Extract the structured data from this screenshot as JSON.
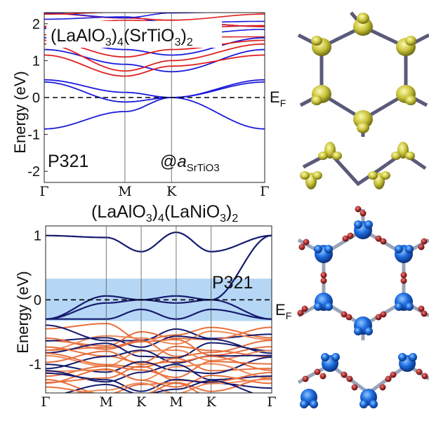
{
  "panels": [
    {
      "title_main": "(LaAlO",
      "title_sub1": "3",
      "title_mid": ")",
      "title_sub2": "4",
      "title_part2": "(SrTiO",
      "title_sub3": "3",
      "title_end": ")",
      "title_sub4": "2",
      "space_group": "P321",
      "lattice_at": "@",
      "lattice_a": "a",
      "lattice_sub": "SrTiO3",
      "fermi_label": "E",
      "fermi_sub": "F",
      "ylabel": "Energy (eV)"
    },
    {
      "title_main": "(LaAlO",
      "title_sub1": "3",
      "title_mid": ")",
      "title_sub2": "4",
      "title_part2": "(LaNiO",
      "title_sub3": "3",
      "title_end": ")",
      "title_sub4": "2",
      "space_group": "P321",
      "fermi_label": "E",
      "fermi_sub": "F",
      "ylabel": "Energy (eV)"
    }
  ],
  "chart_data": [
    {
      "type": "line",
      "title": "(LaAlO3)4(SrTiO3)2",
      "ylabel": "Energy (eV)",
      "ylim": [
        -2.3,
        2.3
      ],
      "yticks": [
        "-2",
        "-1",
        "0",
        "1",
        "2"
      ],
      "xticks": [
        "Γ",
        "M",
        "K",
        "Γ"
      ],
      "fermi_level": 0,
      "series": [
        {
          "color": "#1a1adc",
          "x": [
            0,
            1,
            1.577,
            2.732
          ],
          "y": [
            -0.85,
            -0.38,
            0,
            -0.85
          ]
        },
        {
          "color": "#1a1adc",
          "x": [
            0,
            1,
            1.577,
            2.732
          ],
          "y": [
            0.42,
            -0.12,
            0,
            0.42
          ]
        },
        {
          "color": "#1a1adc",
          "x": [
            0,
            1,
            1.577,
            2.732
          ],
          "y": [
            0.48,
            0.14,
            0,
            0.48
          ]
        },
        {
          "color": "#1a1adc",
          "x": [
            0,
            1,
            1.577,
            2.732
          ],
          "y": [
            1.3,
            0.9,
            0.7,
            1.3
          ]
        },
        {
          "color": "#1a1adc",
          "x": [
            0,
            1,
            1.577,
            2.732
          ],
          "y": [
            1.62,
            1.3,
            1.15,
            1.62
          ]
        },
        {
          "color": "#e02020",
          "x": [
            0,
            1,
            1.577,
            2.732
          ],
          "y": [
            1.15,
            0.58,
            0.85,
            1.15
          ]
        },
        {
          "color": "#e02020",
          "x": [
            0,
            1,
            1.577,
            2.732
          ],
          "y": [
            1.45,
            0.72,
            1.0,
            1.45
          ]
        },
        {
          "color": "#e02020",
          "x": [
            0,
            1,
            1.577,
            2.732
          ],
          "y": [
            1.55,
            1.1,
            1.3,
            1.55
          ]
        }
      ]
    },
    {
      "type": "line",
      "title": "(LaAlO3)4(LaNiO3)2",
      "ylabel": "Energy (eV)",
      "ylim": [
        -1.45,
        1.15
      ],
      "yticks": [
        "1",
        "0",
        "-1"
      ],
      "xticks": [
        "Γ",
        "M",
        "K",
        "M",
        "K",
        "Γ"
      ],
      "fermi_level": 0,
      "shaded_range": [
        -0.33,
        0.33
      ],
      "series": [
        {
          "color": "#151a6e",
          "x": [
            0,
            1,
            1.577,
            2.155,
            2.732,
            3.732
          ],
          "y": [
            1.0,
            0.97,
            0.75,
            1.05,
            0.75,
            1.0
          ]
        },
        {
          "color": "#151a6e",
          "x": [
            0,
            1,
            1.577,
            2.155,
            2.732,
            3.732
          ],
          "y": [
            -0.3,
            0.06,
            0,
            0.06,
            0,
            1.0
          ]
        },
        {
          "color": "#151a6e",
          "x": [
            0,
            1,
            1.577,
            2.155,
            2.732,
            3.732
          ],
          "y": [
            -0.3,
            -0.05,
            0,
            -0.05,
            0,
            -0.3
          ]
        },
        {
          "color": "#151a6e",
          "x": [
            0,
            1,
            1.577,
            2.155,
            2.732,
            3.732
          ],
          "y": [
            -0.3,
            -0.3,
            -0.15,
            -0.3,
            -0.15,
            -0.3
          ]
        }
      ]
    }
  ]
}
